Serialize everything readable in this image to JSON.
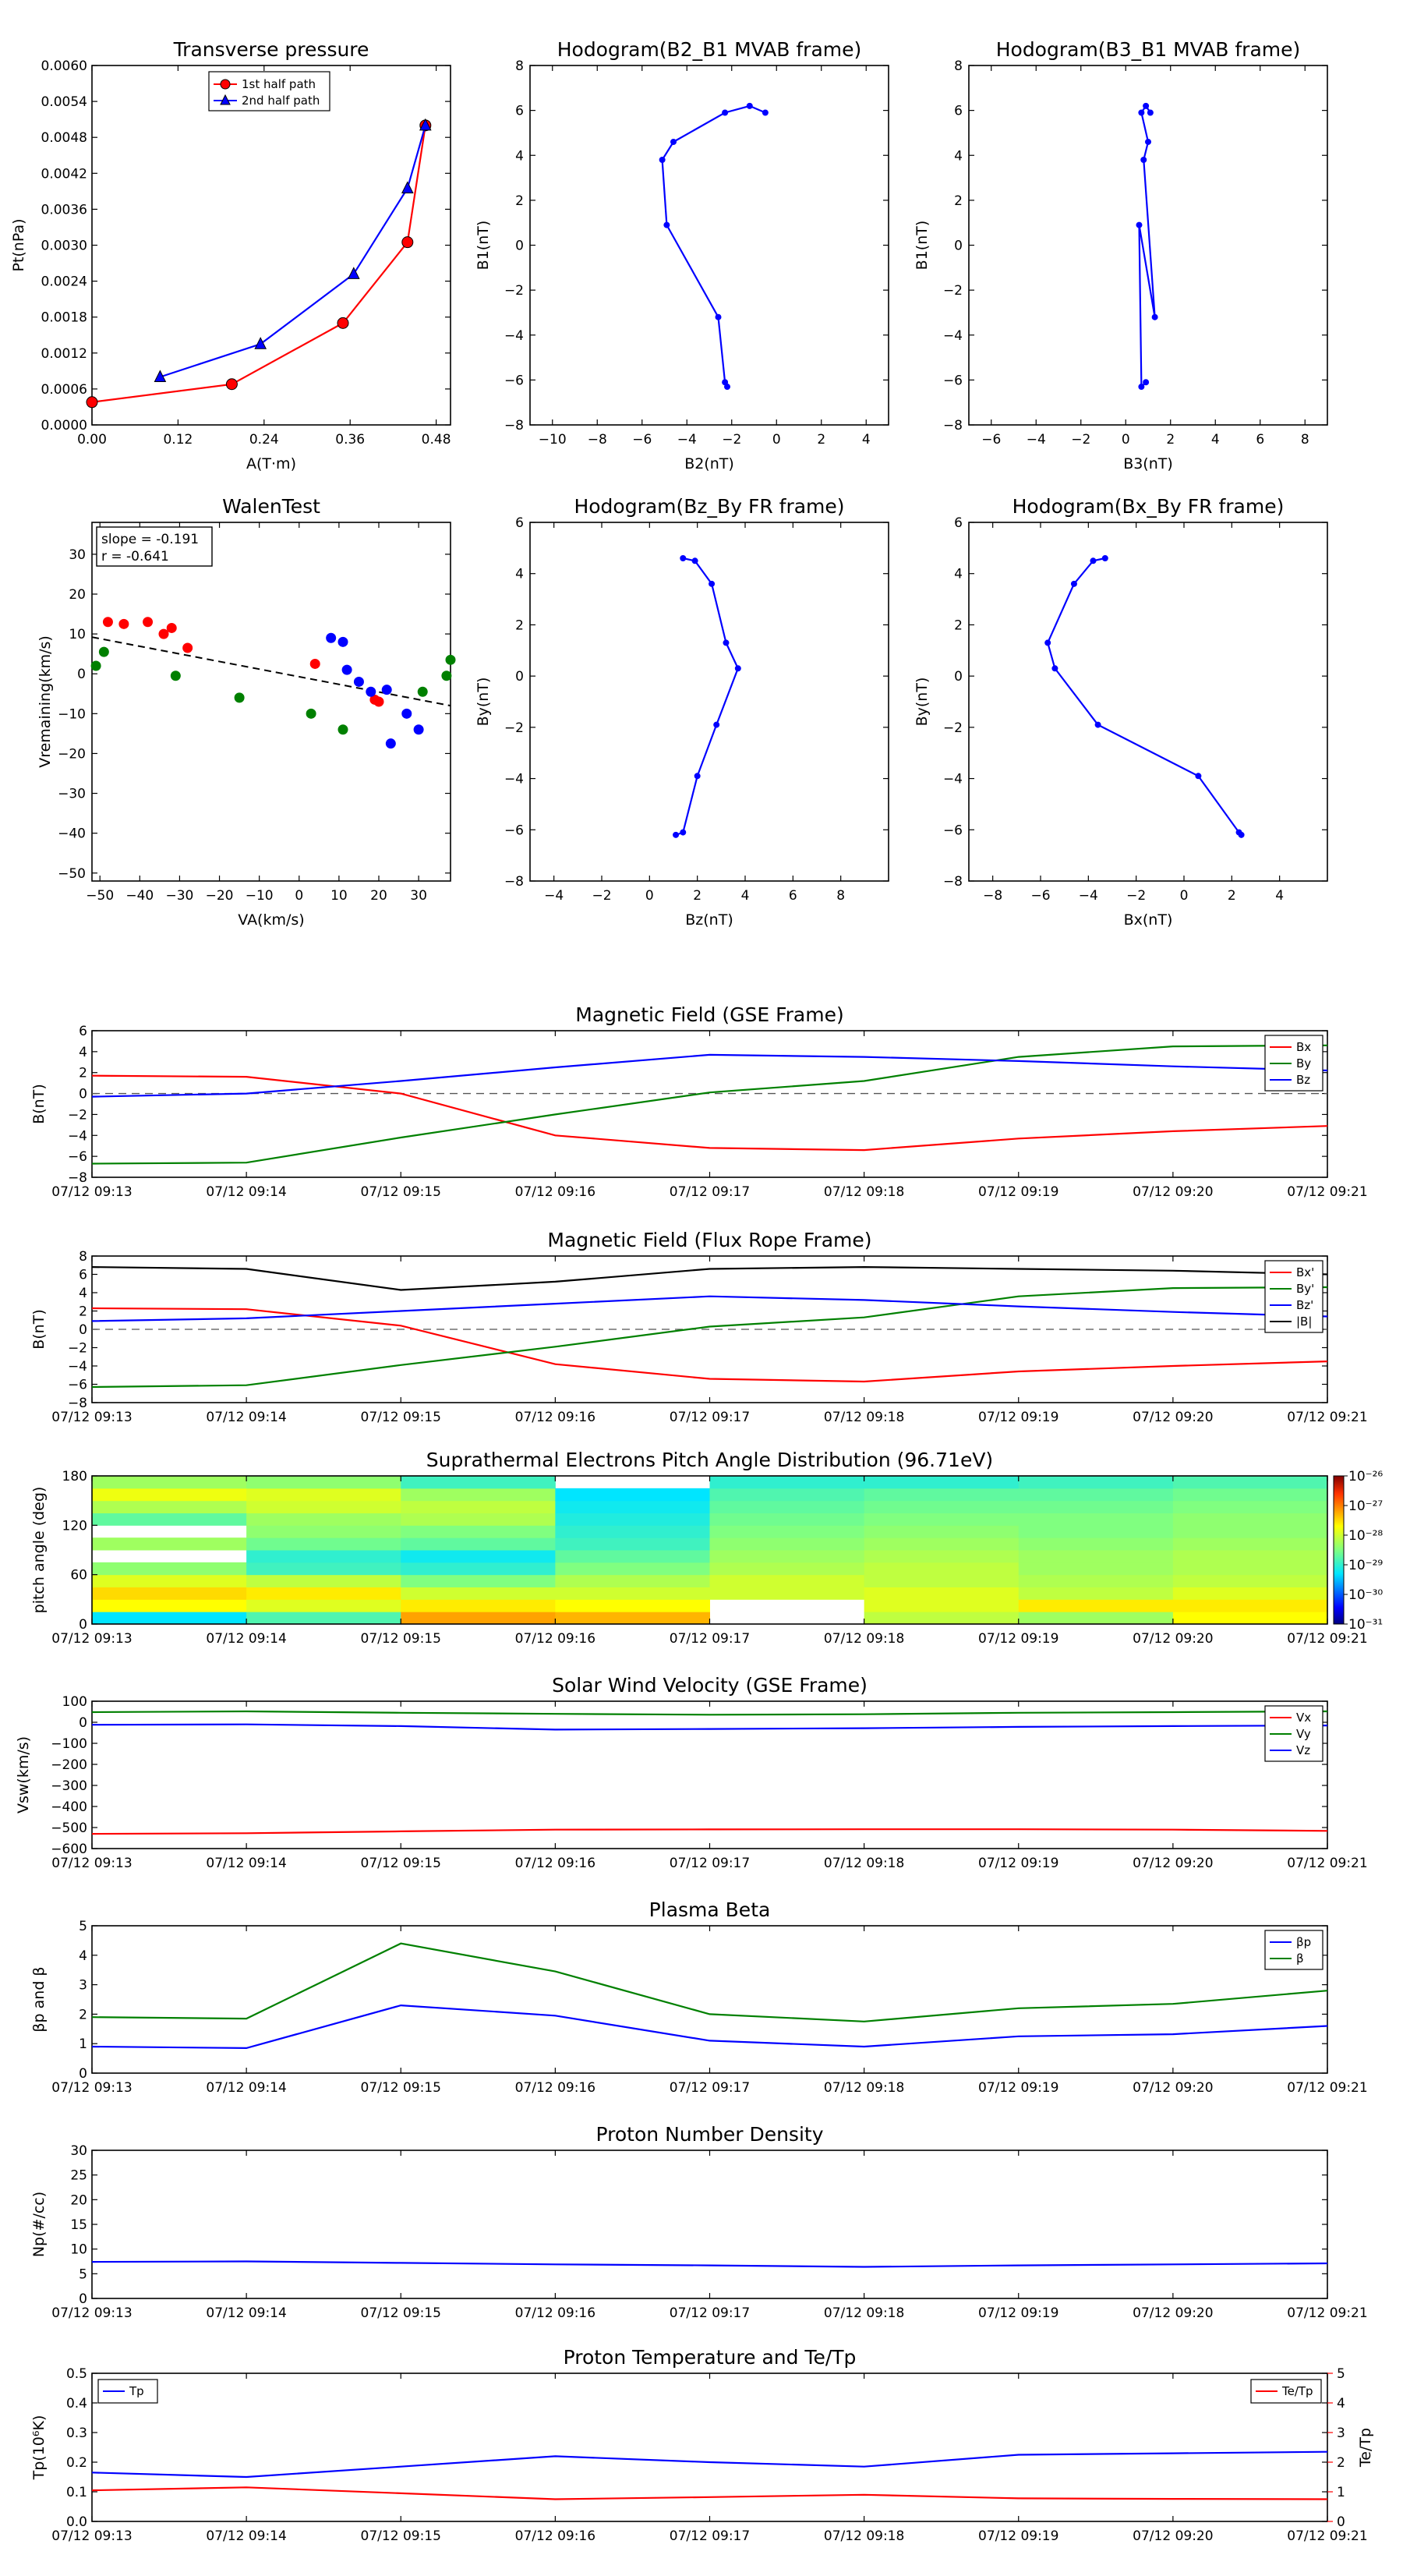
{
  "figure": {
    "panels": [
      {
        "id": "transverse-pressure",
        "title": "Transverse pressure",
        "xlabel": "A(T·m)",
        "ylabel": "Pt(nPa)"
      },
      {
        "id": "hodogram-b2-b1",
        "title": "Hodogram(B2_B1 MVAB frame)",
        "xlabel": "B2(nT)",
        "ylabel": "B1(nT)"
      },
      {
        "id": "hodogram-b3-b1",
        "title": "Hodogram(B3_B1 MVAB frame)",
        "xlabel": "B3(nT)",
        "ylabel": "B1(nT)"
      },
      {
        "id": "walen-test",
        "title": "WalenTest",
        "xlabel": "VA(km/s)",
        "ylabel": "Vremaining(km/s)"
      },
      {
        "id": "hodogram-bz-by",
        "title": "Hodogram(Bz_By FR frame)",
        "xlabel": "Bz(nT)",
        "ylabel": "By(nT)"
      },
      {
        "id": "hodogram-bx-by",
        "title": "Hodogram(Bx_By FR frame)",
        "xlabel": "Bx(nT)",
        "ylabel": "By(nT)"
      },
      {
        "id": "mag-gse",
        "title": "Magnetic Field (GSE Frame)",
        "ylabel": "B(nT)"
      },
      {
        "id": "mag-fr",
        "title": "Magnetic Field (Flux Rope Frame)",
        "ylabel": "B(nT)"
      },
      {
        "id": "pad",
        "title": "Suprathermal Electrons Pitch Angle Distribution (96.71eV)",
        "ylabel": "pitch angle (deg)"
      },
      {
        "id": "vsw",
        "title": "Solar Wind Velocity (GSE Frame)",
        "ylabel": "Vsw(km/s)"
      },
      {
        "id": "beta",
        "title": "Plasma Beta",
        "ylabel": "βp and β"
      },
      {
        "id": "np",
        "title": "Proton Number Density",
        "ylabel": "Np(#/cc)"
      },
      {
        "id": "temp",
        "title": "Proton Temperature and Te/Tp",
        "ylabel": "Tp(10⁶K)",
        "ylabel2": "Te/Tp"
      }
    ],
    "time_ticks": [
      "07/12 09:13",
      "07/12 09:14",
      "07/12 09:15",
      "07/12 09:16",
      "07/12 09:17",
      "07/12 09:18",
      "07/12 09:19",
      "07/12 09:20",
      "07/12 09:21"
    ],
    "colors": {
      "red": "#ff0000",
      "green": "#008000",
      "blue": "#0000ff",
      "black": "#000000"
    }
  },
  "chart_data": [
    {
      "type": "line",
      "title": "Transverse pressure",
      "xlabel": "A(T·m)",
      "ylabel": "Pt(nPa)",
      "xlim": [
        0,
        0.5
      ],
      "ylim": [
        0,
        0.006
      ],
      "xticks": [
        "0.00",
        "0.12",
        "0.24",
        "0.36",
        "0.48"
      ],
      "yticks": [
        "0.0000",
        "0.0006",
        "0.0012",
        "0.0018",
        "0.0024",
        "0.0030",
        "0.0036",
        "0.0042",
        "0.0048",
        "0.0054",
        "0.0060"
      ],
      "legend_position": "top-center",
      "series": [
        {
          "name": "1st half path",
          "color": "#ff0000",
          "marker": "circle",
          "x": [
            0.0,
            0.195,
            0.35,
            0.44,
            0.465
          ],
          "y": [
            0.00038,
            0.00068,
            0.0017,
            0.00305,
            0.005
          ]
        },
        {
          "name": "2nd half path",
          "color": "#0000ff",
          "marker": "triangle",
          "x": [
            0.095,
            0.235,
            0.365,
            0.44,
            0.465
          ],
          "y": [
            0.0008,
            0.00135,
            0.00252,
            0.00395,
            0.005
          ]
        }
      ]
    },
    {
      "type": "line",
      "title": "Hodogram(B2_B1 MVAB frame)",
      "xlabel": "B2(nT)",
      "ylabel": "B1(nT)",
      "xlim": [
        -11,
        5
      ],
      "ylim": [
        -8,
        8
      ],
      "xticks": [
        "−10",
        "−8",
        "−6",
        "−4",
        "−2",
        "0",
        "2",
        "4"
      ],
      "yticks": [
        "−8",
        "−6",
        "−4",
        "−2",
        "0",
        "2",
        "4",
        "6",
        "8"
      ],
      "series": [
        {
          "color": "#0000ff",
          "x": [
            -0.5,
            -1.2,
            -2.3,
            -4.6,
            -5.1,
            -4.9,
            -2.6,
            -2.3,
            -2.2
          ],
          "y": [
            5.9,
            6.2,
            5.9,
            4.6,
            3.8,
            0.9,
            -3.2,
            -6.1,
            -6.3
          ]
        }
      ]
    },
    {
      "type": "line",
      "title": "Hodogram(B3_B1 MVAB frame)",
      "xlabel": "B3(nT)",
      "ylabel": "B1(nT)",
      "xlim": [
        -7,
        9
      ],
      "ylim": [
        -8,
        8
      ],
      "xticks": [
        "−6",
        "−4",
        "−2",
        "0",
        "2",
        "4",
        "6",
        "8"
      ],
      "yticks": [
        "−8",
        "−6",
        "−4",
        "−2",
        "0",
        "2",
        "4",
        "6",
        "8"
      ],
      "series": [
        {
          "color": "#0000ff",
          "x": [
            1.1,
            0.9,
            0.7,
            1.0,
            0.8,
            1.3,
            0.6,
            0.7,
            0.9
          ],
          "y": [
            5.9,
            6.2,
            5.9,
            4.6,
            3.8,
            -3.2,
            0.9,
            -6.3,
            -6.1
          ]
        }
      ]
    },
    {
      "type": "scatter",
      "title": "WalenTest",
      "xlabel": "VA(km/s)",
      "ylabel": "Vremaining(km/s)",
      "xlim": [
        -52,
        38
      ],
      "ylim": [
        -52,
        38
      ],
      "xticks": [
        "−50",
        "−40",
        "−30",
        "−20",
        "−10",
        "0",
        "10",
        "20",
        "30"
      ],
      "yticks": [
        "−50",
        "−40",
        "−30",
        "−20",
        "−10",
        "0",
        "10",
        "20",
        "30"
      ],
      "annotation": {
        "slope": "slope = -0.191",
        "r": "r = -0.641"
      },
      "fit": {
        "x": [
          -52,
          38
        ],
        "y": [
          9.2,
          -8.0
        ]
      },
      "series": [
        {
          "color": "#ff0000",
          "x": [
            -48,
            -44,
            -38,
            -34,
            -32,
            -28,
            4,
            19,
            20
          ],
          "y": [
            13,
            12.5,
            13,
            10,
            11.5,
            6.5,
            2.5,
            -6.5,
            -7
          ]
        },
        {
          "color": "#008000",
          "x": [
            -51,
            -49,
            -31,
            -15,
            3,
            11,
            31,
            37,
            38
          ],
          "y": [
            2,
            5.5,
            -0.5,
            -6,
            -10,
            -14,
            -4.5,
            -0.5,
            3.5
          ]
        },
        {
          "color": "#0000ff",
          "x": [
            8,
            11,
            12,
            15,
            18,
            22,
            23,
            27,
            30
          ],
          "y": [
            9,
            8,
            1,
            -2,
            -4.5,
            -4,
            -17.5,
            -10,
            -14
          ]
        }
      ]
    },
    {
      "type": "line",
      "title": "Hodogram(Bz_By FR frame)",
      "xlabel": "Bz(nT)",
      "ylabel": "By(nT)",
      "xlim": [
        -5,
        10
      ],
      "ylim": [
        -8,
        6
      ],
      "xticks": [
        "−4",
        "−2",
        "0",
        "2",
        "4",
        "6",
        "8"
      ],
      "yticks": [
        "−8",
        "−6",
        "−4",
        "−2",
        "0",
        "2",
        "4",
        "6"
      ],
      "series": [
        {
          "color": "#0000ff",
          "x": [
            1.4,
            1.9,
            2.6,
            3.2,
            3.7,
            2.8,
            2.0,
            1.4,
            1.1
          ],
          "y": [
            4.6,
            4.5,
            3.6,
            1.3,
            0.3,
            -1.9,
            -3.9,
            -6.1,
            -6.2
          ]
        }
      ]
    },
    {
      "type": "line",
      "title": "Hodogram(Bx_By FR frame)",
      "xlabel": "Bx(nT)",
      "ylabel": "By(nT)",
      "xlim": [
        -9,
        6
      ],
      "ylim": [
        -8,
        6
      ],
      "xticks": [
        "−8",
        "−6",
        "−4",
        "−2",
        "0",
        "2",
        "4"
      ],
      "yticks": [
        "−8",
        "−6",
        "−4",
        "−2",
        "0",
        "2",
        "4",
        "6"
      ],
      "series": [
        {
          "color": "#0000ff",
          "x": [
            -3.3,
            -3.8,
            -4.6,
            -5.7,
            -5.4,
            -3.6,
            0.6,
            2.3,
            2.4
          ],
          "y": [
            4.6,
            4.5,
            3.6,
            1.3,
            0.3,
            -1.9,
            -3.9,
            -6.1,
            -6.2
          ]
        }
      ]
    },
    {
      "type": "line",
      "title": "Magnetic Field (GSE Frame)",
      "ylabel": "B(nT)",
      "categories": [
        "07/12 09:13",
        "07/12 09:14",
        "07/12 09:15",
        "07/12 09:16",
        "07/12 09:17",
        "07/12 09:18",
        "07/12 09:19",
        "07/12 09:20",
        "07/12 09:21"
      ],
      "ylim": [
        -8,
        6
      ],
      "yticks": [
        "−8",
        "−6",
        "−4",
        "−2",
        "0",
        "2",
        "4",
        "6"
      ],
      "zero_line": true,
      "legend_position": "top-right",
      "series": [
        {
          "name": "Bx",
          "color": "#ff0000",
          "values": [
            1.7,
            1.6,
            0.0,
            -4.0,
            -5.2,
            -5.4,
            -4.3,
            -3.6,
            -3.1
          ]
        },
        {
          "name": "By",
          "color": "#008000",
          "values": [
            -6.7,
            -6.6,
            -4.2,
            -2.0,
            0.1,
            1.2,
            3.5,
            4.5,
            4.6
          ]
        },
        {
          "name": "Bz",
          "color": "#0000ff",
          "values": [
            -0.3,
            0.0,
            1.2,
            2.5,
            3.7,
            3.5,
            3.1,
            2.6,
            2.2
          ]
        }
      ]
    },
    {
      "type": "line",
      "title": "Magnetic Field (Flux Rope Frame)",
      "ylabel": "B(nT)",
      "categories": [
        "07/12 09:13",
        "07/12 09:14",
        "07/12 09:15",
        "07/12 09:16",
        "07/12 09:17",
        "07/12 09:18",
        "07/12 09:19",
        "07/12 09:20",
        "07/12 09:21"
      ],
      "ylim": [
        -8,
        8
      ],
      "yticks": [
        "−8",
        "−6",
        "−4",
        "−2",
        "0",
        "2",
        "4",
        "6",
        "8"
      ],
      "zero_line": true,
      "legend_position": "top-right",
      "series": [
        {
          "name": "Bx'",
          "color": "#ff0000",
          "values": [
            2.3,
            2.2,
            0.4,
            -3.8,
            -5.4,
            -5.7,
            -4.6,
            -4.0,
            -3.5
          ]
        },
        {
          "name": "By'",
          "color": "#008000",
          "values": [
            -6.3,
            -6.1,
            -3.9,
            -1.9,
            0.3,
            1.3,
            3.6,
            4.5,
            4.6
          ]
        },
        {
          "name": "Bz'",
          "color": "#0000ff",
          "values": [
            0.9,
            1.2,
            2.0,
            2.8,
            3.6,
            3.2,
            2.5,
            1.9,
            1.4
          ]
        },
        {
          "name": "|B|",
          "color": "#000000",
          "values": [
            6.8,
            6.6,
            4.3,
            5.2,
            6.6,
            6.8,
            6.6,
            6.4,
            6.0
          ]
        }
      ]
    },
    {
      "type": "heatmap",
      "title": "Suprathermal Electrons Pitch Angle Distribution (96.71eV)",
      "ylabel": "pitch angle (deg)",
      "categories": [
        "07/12 09:13",
        "07/12 09:14",
        "07/12 09:15",
        "07/12 09:16",
        "07/12 09:17",
        "07/12 09:18",
        "07/12 09:19",
        "07/12 09:20",
        "07/12 09:21"
      ],
      "ylim": [
        0,
        180
      ],
      "yticks": [
        "0",
        "60",
        "120",
        "180"
      ],
      "colorbar": {
        "ticks": [
          "10⁻²⁶",
          "10⁻²⁷",
          "10⁻²⁸",
          "10⁻²⁹",
          "10⁻³⁰",
          "10⁻³¹"
        ],
        "log_min": -31,
        "log_max": -26
      },
      "bins": [
        "0-15",
        "15-30",
        "30-45",
        "45-60",
        "60-75",
        "75-90",
        "90-105",
        "105-120",
        "120-135",
        "135-150",
        "150-165",
        "165-180"
      ],
      "columns": [
        [
          -29.3,
          -27.7,
          -27.5,
          -27.9,
          -28.4,
          null,
          -28.3,
          null,
          -28.7,
          -28.2,
          -27.8,
          -28.3
        ],
        [
          -28.8,
          -27.9,
          -27.6,
          -28.1,
          -28.9,
          -29.0,
          -28.6,
          -28.4,
          -28.3,
          -28.0,
          -27.9,
          -28.4
        ],
        [
          -27.2,
          -27.6,
          -28.0,
          -28.5,
          -29.0,
          -29.2,
          -28.7,
          -28.5,
          -28.2,
          -28.1,
          -28.3,
          -28.9
        ],
        [
          -27.3,
          -27.7,
          -28.0,
          -28.2,
          -28.5,
          -28.7,
          -28.9,
          -29.0,
          -29.1,
          -29.2,
          -29.3,
          null
        ],
        [
          null,
          null,
          -28.0,
          -28.0,
          -28.2,
          -28.3,
          -28.4,
          -28.5,
          -28.6,
          -28.7,
          -28.8,
          -29.0
        ],
        [
          -28.1,
          -27.9,
          -27.9,
          -28.1,
          -28.1,
          -28.2,
          -28.3,
          -28.4,
          -28.5,
          -28.6,
          -28.7,
          -29.0
        ],
        [
          -28.3,
          -27.6,
          -28.1,
          -28.2,
          -28.3,
          -28.3,
          -28.4,
          -28.5,
          -28.5,
          -28.6,
          -28.7,
          -28.9
        ],
        [
          -27.7,
          -27.6,
          -27.9,
          -28.1,
          -28.2,
          -28.2,
          -28.3,
          -28.4,
          -28.4,
          -28.5,
          -28.6,
          -28.8
        ]
      ]
    },
    {
      "type": "line",
      "title": "Solar Wind Velocity (GSE Frame)",
      "ylabel": "Vsw(km/s)",
      "categories": [
        "07/12 09:13",
        "07/12 09:14",
        "07/12 09:15",
        "07/12 09:16",
        "07/12 09:17",
        "07/12 09:18",
        "07/12 09:19",
        "07/12 09:20",
        "07/12 09:21"
      ],
      "ylim": [
        -600,
        100
      ],
      "yticks": [
        "−600",
        "−500",
        "−400",
        "−300",
        "−200",
        "−100",
        "0",
        "100"
      ],
      "legend_position": "top-right",
      "series": [
        {
          "name": "Vx",
          "color": "#ff0000",
          "values": [
            -530,
            -527,
            -518,
            -510,
            -509,
            -508,
            -508,
            -510,
            -516
          ]
        },
        {
          "name": "Vy",
          "color": "#008000",
          "values": [
            48,
            52,
            45,
            40,
            36,
            38,
            45,
            48,
            52
          ]
        },
        {
          "name": "Vz",
          "color": "#0000ff",
          "values": [
            -12,
            -10,
            -18,
            -35,
            -32,
            -28,
            -22,
            -18,
            -15
          ]
        }
      ]
    },
    {
      "type": "line",
      "title": "Plasma Beta",
      "ylabel": "βp and β",
      "categories": [
        "07/12 09:13",
        "07/12 09:14",
        "07/12 09:15",
        "07/12 09:16",
        "07/12 09:17",
        "07/12 09:18",
        "07/12 09:19",
        "07/12 09:20",
        "07/12 09:21"
      ],
      "ylim": [
        0,
        5
      ],
      "yticks": [
        "0",
        "1",
        "2",
        "3",
        "4",
        "5"
      ],
      "legend_position": "top-right",
      "series": [
        {
          "name": "βp",
          "color": "#0000ff",
          "values": [
            0.9,
            0.85,
            2.3,
            1.95,
            1.1,
            0.9,
            1.25,
            1.32,
            1.6
          ]
        },
        {
          "name": "β",
          "color": "#008000",
          "values": [
            1.9,
            1.85,
            4.4,
            3.45,
            2.0,
            1.75,
            2.2,
            2.35,
            2.8
          ]
        }
      ]
    },
    {
      "type": "line",
      "title": "Proton Number Density",
      "ylabel": "Np(#/cc)",
      "categories": [
        "07/12 09:13",
        "07/12 09:14",
        "07/12 09:15",
        "07/12 09:16",
        "07/12 09:17",
        "07/12 09:18",
        "07/12 09:19",
        "07/12 09:20",
        "07/12 09:21"
      ],
      "ylim": [
        0,
        30
      ],
      "yticks": [
        "0",
        "5",
        "10",
        "15",
        "20",
        "25",
        "30"
      ],
      "series": [
        {
          "color": "#0000ff",
          "values": [
            7.4,
            7.5,
            7.2,
            6.9,
            6.7,
            6.4,
            6.7,
            6.9,
            7.1
          ]
        }
      ]
    },
    {
      "type": "line",
      "title": "Proton Temperature and Te/Tp",
      "ylabel": "Tp(10⁶K)",
      "ylabel2": "Te/Tp",
      "categories": [
        "07/12 09:13",
        "07/12 09:14",
        "07/12 09:15",
        "07/12 09:16",
        "07/12 09:17",
        "07/12 09:18",
        "07/12 09:19",
        "07/12 09:20",
        "07/12 09:21"
      ],
      "ylim": [
        0,
        0.5
      ],
      "y2lim": [
        0,
        5
      ],
      "yticks": [
        "0.0",
        "0.1",
        "0.2",
        "0.3",
        "0.4",
        "0.5"
      ],
      "y2ticks": [
        "0",
        "1",
        "2",
        "3",
        "4",
        "5"
      ],
      "series": [
        {
          "name": "Tp",
          "color": "#0000ff",
          "axis": "left",
          "values": [
            0.165,
            0.15,
            0.185,
            0.22,
            0.2,
            0.185,
            0.225,
            0.23,
            0.235
          ]
        },
        {
          "name": "Te/Tp",
          "color": "#ff0000",
          "axis": "right",
          "values": [
            1.05,
            1.15,
            0.95,
            0.75,
            0.82,
            0.9,
            0.78,
            0.76,
            0.75
          ]
        }
      ]
    }
  ]
}
